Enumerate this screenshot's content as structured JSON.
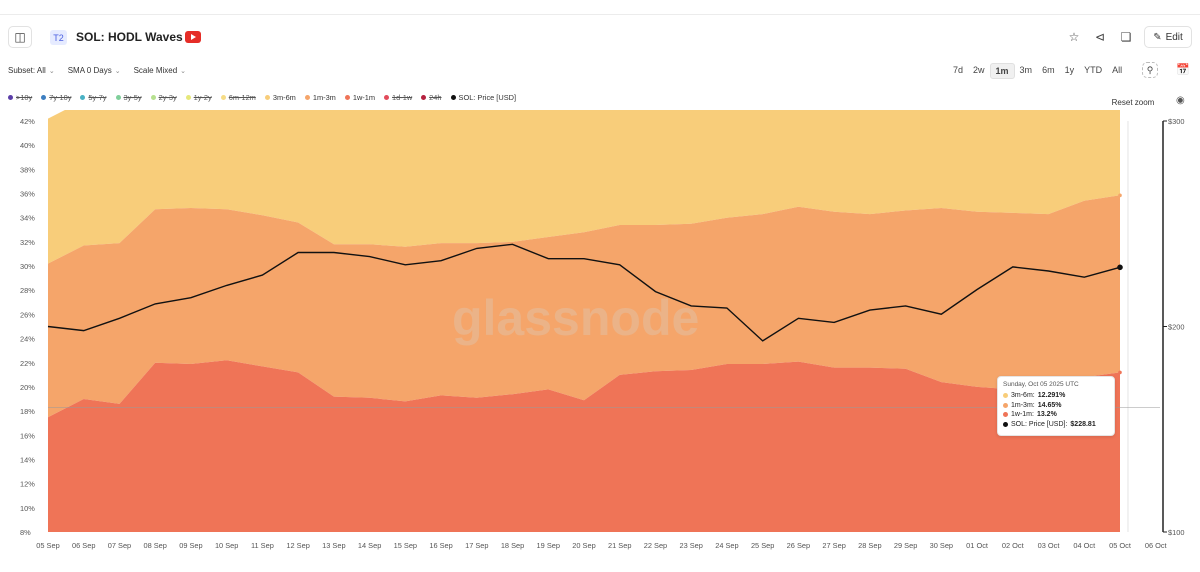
{
  "header": {
    "badge": "T2",
    "title": "SOL: HODL Waves",
    "edit_label": "Edit"
  },
  "controls": {
    "subset": "Subset: All",
    "sma": "SMA 0 Days",
    "scale": "Scale Mixed",
    "ranges": [
      "7d",
      "2w",
      "1m",
      "3m",
      "6m",
      "1y",
      "YTD",
      "All"
    ],
    "active_range": "1m",
    "reset_zoom": "Reset zoom"
  },
  "legend": [
    {
      "label": ">10y",
      "color": "#5b3ea8",
      "struck": true
    },
    {
      "label": "7y-10y",
      "color": "#3d7fc1",
      "struck": true
    },
    {
      "label": "5y-7y",
      "color": "#49b1c4",
      "struck": true
    },
    {
      "label": "3y-5y",
      "color": "#7fcf9a",
      "struck": true
    },
    {
      "label": "2y-3y",
      "color": "#b6e08f",
      "struck": true
    },
    {
      "label": "1y-2y",
      "color": "#e6e87a",
      "struck": true
    },
    {
      "label": "6m-12m",
      "color": "#f6dc86",
      "struck": true
    },
    {
      "label": "3m-6m",
      "color": "#f8cd7a",
      "struck": false
    },
    {
      "label": "1m-3m",
      "color": "#f5a56a",
      "struck": false
    },
    {
      "label": "1w-1m",
      "color": "#ef7457",
      "struck": false
    },
    {
      "label": "1d-1w",
      "color": "#e24b5b",
      "struck": true
    },
    {
      "label": "24h",
      "color": "#b5213f",
      "struck": true
    },
    {
      "label": "SOL: Price [USD]",
      "color": "#111111",
      "struck": false
    }
  ],
  "tooltip": {
    "date": "Sunday, Oct 05 2025 UTC",
    "rows": [
      {
        "label": "3m-6m:",
        "value": "12.291%",
        "color": "#f8cd7a"
      },
      {
        "label": "1m-3m:",
        "value": "14.65%",
        "color": "#f5a56a"
      },
      {
        "label": "1w-1m:",
        "value": "13.2%",
        "color": "#ef7457"
      },
      {
        "label": "SOL: Price [USD]:",
        "value": "$228.81",
        "color": "#111111"
      }
    ]
  },
  "watermark": "glassnode",
  "chart_data": {
    "type": "area",
    "title": "SOL: HODL Waves",
    "x": [
      "05 Sep",
      "06 Sep",
      "07 Sep",
      "08 Sep",
      "09 Sep",
      "10 Sep",
      "11 Sep",
      "12 Sep",
      "13 Sep",
      "14 Sep",
      "15 Sep",
      "16 Sep",
      "17 Sep",
      "18 Sep",
      "19 Sep",
      "20 Sep",
      "21 Sep",
      "22 Sep",
      "23 Sep",
      "24 Sep",
      "25 Sep",
      "26 Sep",
      "27 Sep",
      "28 Sep",
      "29 Sep",
      "30 Sep",
      "01 Oct",
      "02 Oct",
      "03 Oct",
      "04 Oct",
      "05 Oct"
    ],
    "x_extra_tick": "06 Oct",
    "stacked": true,
    "series": [
      {
        "name": "1w-1m",
        "color": "#ef7457",
        "values": [
          9.5,
          11.0,
          10.6,
          14.0,
          13.9,
          14.2,
          13.7,
          13.2,
          11.2,
          11.1,
          10.8,
          11.3,
          11.1,
          11.4,
          11.8,
          10.9,
          13.0,
          13.3,
          13.4,
          13.9,
          13.9,
          14.1,
          13.6,
          13.6,
          13.5,
          12.4,
          12.0,
          11.8,
          11.8,
          12.8,
          13.2
        ]
      },
      {
        "name": "1m-3m",
        "color": "#f5a56a",
        "values": [
          12.7,
          12.7,
          13.3,
          12.7,
          12.9,
          12.5,
          12.5,
          12.4,
          12.6,
          12.7,
          12.8,
          12.6,
          12.8,
          12.6,
          12.6,
          13.9,
          12.4,
          12.1,
          12.1,
          12.1,
          12.4,
          12.8,
          12.9,
          12.7,
          13.1,
          14.4,
          14.5,
          14.6,
          14.5,
          14.6,
          14.65
        ]
      },
      {
        "name": "3m-6m",
        "color": "#f8cd7a",
        "values": [
          12.0,
          12.0,
          12.0,
          11.9,
          12.0,
          12.0,
          12.0,
          12.0,
          12.0,
          12.1,
          12.1,
          12.1,
          12.1,
          12.1,
          12.2,
          12.2,
          12.4,
          12.6,
          12.7,
          12.5,
          12.0,
          12.3,
          12.4,
          12.9,
          12.8,
          12.9,
          12.5,
          12.3,
          12.4,
          12.4,
          12.291
        ]
      }
    ],
    "price_series": {
      "name": "SOL: Price [USD]",
      "color": "#111111",
      "values": [
        200,
        198,
        204,
        211,
        214,
        220,
        225,
        236,
        236,
        234,
        230,
        232,
        238,
        240,
        233,
        233,
        230,
        217,
        210,
        209,
        193,
        204,
        202,
        208,
        210,
        206,
        218,
        229,
        227,
        224,
        228.81
      ]
    },
    "y_left": {
      "min": 8,
      "max": 42,
      "step": 2,
      "suffix": "%"
    },
    "y_right": {
      "min": 100,
      "max": 300,
      "ticks": [
        "$300",
        "$200",
        "$100"
      ],
      "tick_values": [
        300,
        200,
        100
      ]
    },
    "hover_index": 30,
    "crosshair_y": 18.3
  }
}
